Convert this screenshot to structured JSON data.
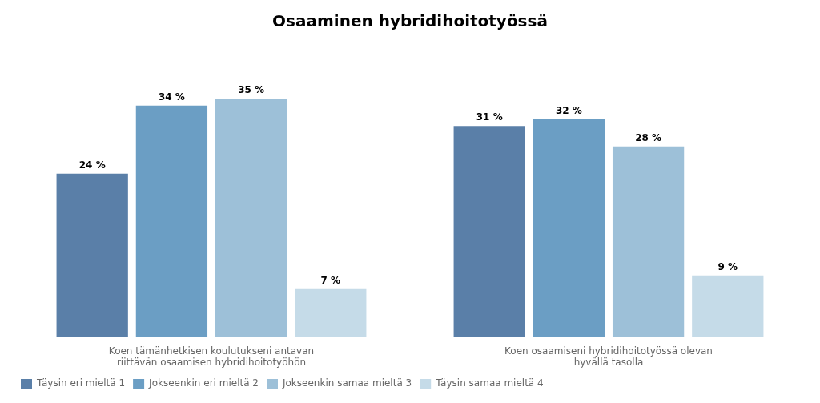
{
  "chart_data": {
    "type": "bar",
    "title": "Osaaminen hybridihoitotyössä",
    "categories": [
      "Koen tämänhetkisen koulutukseni antavan\nriittävän osaamisen hybridihoitotyöhön",
      "Koen osaamiseni hybridihoitotyössä olevan\nhyvällä tasolla"
    ],
    "series": [
      {
        "name": "Täysin eri mieltä 1",
        "color": "#5a7fa8",
        "values": [
          24,
          31
        ],
        "value_labels": [
          "24 %",
          "31 %"
        ]
      },
      {
        "name": "Jokseenkin eri mieltä 2",
        "color": "#6b9ec4",
        "values": [
          34,
          32
        ],
        "value_labels": [
          "34 %",
          "32 %"
        ]
      },
      {
        "name": "Jokseenkin samaa mieltä 3",
        "color": "#9dc0d8",
        "values": [
          35,
          28
        ],
        "value_labels": [
          "35 %",
          "28 %"
        ]
      },
      {
        "name": "Täysin samaa mieltä 4",
        "color": "#c5dbe8",
        "values": [
          7,
          9
        ],
        "value_labels": [
          "7 %",
          "9 %"
        ]
      }
    ],
    "ylim": [
      0,
      42
    ],
    "grid": false,
    "legend": "lower left",
    "data_labels": true,
    "tick_labels": "x"
  }
}
